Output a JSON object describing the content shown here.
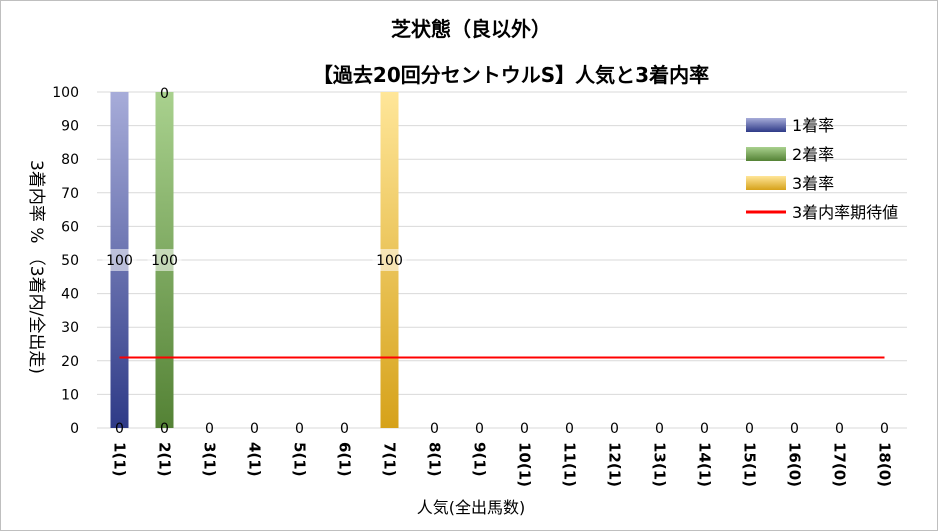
{
  "chart_data": {
    "type": "bar",
    "title": "芝状態（良以外）",
    "subtitle": "【過去20回分セントウルS】人気と3着内率",
    "xlabel": "人気(全出馬数)",
    "ylabel": "3着内率 % （3着内/全出走)",
    "ylim": [
      0,
      100
    ],
    "yticks": [
      0,
      10,
      20,
      30,
      40,
      50,
      60,
      70,
      80,
      90,
      100
    ],
    "grid": true,
    "legend_position": "right",
    "categories": [
      "1(1)",
      "2(1)",
      "3(1)",
      "4(1)",
      "5(1)",
      "6(1)",
      "7(1)",
      "8(1)",
      "9(1)",
      "10(1)",
      "11(1)",
      "12(1)",
      "13(1)",
      "14(1)",
      "15(1)",
      "16(0)",
      "17(0)",
      "18(0)"
    ],
    "series": [
      {
        "name": "1着率",
        "color": "#2e3a87",
        "values": [
          100,
          0,
          0,
          0,
          0,
          0,
          0,
          0,
          0,
          0,
          0,
          0,
          0,
          0,
          0,
          0,
          0,
          0
        ]
      },
      {
        "name": "2着率",
        "color": "#548235",
        "values": [
          0,
          100,
          0,
          0,
          0,
          0,
          0,
          0,
          0,
          0,
          0,
          0,
          0,
          0,
          0,
          0,
          0,
          0
        ]
      },
      {
        "name": "3着率",
        "color": "#d6a21a",
        "values": [
          0,
          0,
          0,
          0,
          0,
          0,
          100,
          0,
          0,
          0,
          0,
          0,
          0,
          0,
          0,
          0,
          0,
          0
        ]
      }
    ],
    "top_labels": [
      "",
      "0",
      "",
      "",
      "",
      "",
      "",
      "",
      "",
      "",
      "",
      "",
      "",
      "",
      "",
      "",
      "",
      ""
    ],
    "mid_labels": [
      "100",
      "100",
      "",
      "",
      "",
      "",
      "100",
      "",
      "",
      "",
      "",
      "",
      "",
      "",
      "",
      "",
      "",
      ""
    ],
    "bottom_labels": [
      "0",
      "0",
      "0",
      "0",
      "0",
      "0",
      "",
      "0",
      "0",
      "0",
      "0",
      "0",
      "0",
      "0",
      "0",
      "0",
      "0",
      "0"
    ],
    "expected_line": {
      "name": "3着内率期待値",
      "value": 21,
      "color": "#ff0000"
    }
  }
}
